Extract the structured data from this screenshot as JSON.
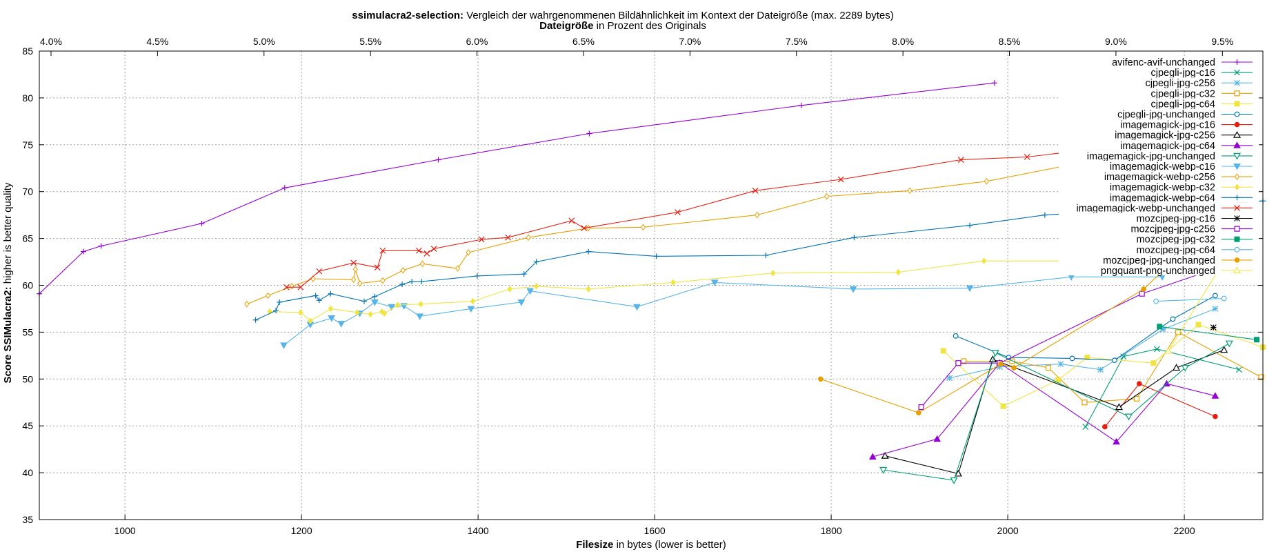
{
  "chart_data": {
    "type": "line",
    "title_bold": "ssimulacra2-selection:",
    "title_rest": " Vergleich der wahrgenommenen Bildähnlichkeit im Kontext der Dateigröße (max. 2289 bytes)",
    "x2label_bold": "Dateigröße",
    "x2label_rest": " in Prozent des Originals",
    "xlabel_bold": "Filesize",
    "xlabel_rest": " in bytes (lower is better)",
    "ylabel_bold": "Score SSIMulacra2:",
    "ylabel_rest": " higher is better quality",
    "xlim": [
      903,
      2289
    ],
    "ylim": [
      35,
      85
    ],
    "x2lim": [
      3.945,
      9.69
    ],
    "xticks": [
      1000,
      1200,
      1400,
      1600,
      1800,
      2000,
      2200
    ],
    "xtick_labels": [
      "1000",
      "1200",
      "1400",
      "1600",
      "1800",
      "2000",
      "2200"
    ],
    "yticks": [
      35,
      40,
      45,
      50,
      55,
      60,
      65,
      70,
      75,
      80,
      85
    ],
    "ytick_labels": [
      "35",
      "40",
      "45",
      "50",
      "55",
      "60",
      "65",
      "70",
      "75",
      "80",
      "85"
    ],
    "x2ticks": [
      4.0,
      4.5,
      5.0,
      5.5,
      6.0,
      6.5,
      7.0,
      7.5,
      8.0,
      8.5,
      9.0,
      9.5
    ],
    "x2tick_labels": [
      "4.0%",
      "4.5%",
      "5.0%",
      "5.5%",
      "6.0%",
      "6.5%",
      "7.0%",
      "7.5%",
      "8.0%",
      "8.5%",
      "9.0%",
      "9.5%"
    ],
    "grid": true,
    "legend_position": "top-right",
    "series": [
      {
        "name": "avifenc-avif-unchanged",
        "color": "#9400d3",
        "marker": "plus",
        "x": [
          903,
          953,
          973,
          1087,
          1181,
          1355,
          1526,
          1766,
          1985
        ],
        "y": [
          59.1,
          63.6,
          64.2,
          66.6,
          70.4,
          73.4,
          76.2,
          79.2,
          81.6
        ]
      },
      {
        "name": "cjpegli-jpg-c16",
        "color": "#009e73",
        "marker": "x",
        "x": [
          2088,
          2131,
          2169,
          2262
        ],
        "y": [
          44.9,
          52.4,
          53.2,
          51.0
        ]
      },
      {
        "name": "cjpegli-jpg-c256",
        "color": "#56b4e9",
        "marker": "star",
        "x": [
          1934,
          1991,
          2060,
          2105,
          2176,
          2235
        ],
        "y": [
          50.1,
          51.3,
          51.6,
          51.0,
          55.3,
          57.5
        ]
      },
      {
        "name": "cjpegli-jpg-c32",
        "color": "#e69f00",
        "marker": "square",
        "x": [
          1950,
          2005,
          2046,
          2087,
          2146,
          2193,
          2287
        ],
        "y": [
          51.9,
          51.9,
          51.2,
          47.5,
          47.9,
          55.0,
          50.2
        ]
      },
      {
        "name": "cjpegli-jpg-c64",
        "color": "#f0e442",
        "marker": "square-filled",
        "x": [
          1927,
          1995,
          2057,
          2090,
          2165,
          2216,
          2289
        ],
        "y": [
          53.0,
          47.1,
          49.9,
          52.3,
          51.7,
          55.8,
          53.4
        ]
      },
      {
        "name": "cjpegli-jpg-unchanged",
        "color": "#0072b2",
        "marker": "circle",
        "x": [
          1941,
          2001,
          2073,
          2121,
          2187,
          2235
        ],
        "y": [
          54.6,
          52.3,
          52.2,
          52.0,
          56.4,
          58.9
        ]
      },
      {
        "name": "imagemagick-jpg-c16",
        "color": "#e51e10",
        "marker": "circle-filled",
        "x": [
          2110,
          2149,
          2235
        ],
        "y": [
          44.9,
          49.5,
          46.0
        ]
      },
      {
        "name": "imagemagick-jpg-c256",
        "color": "#000000",
        "marker": "triangle",
        "x": [
          1861,
          1944,
          1983,
          2126,
          2191,
          2245
        ],
        "y": [
          41.8,
          39.9,
          52.1,
          47.0,
          51.2,
          53.1
        ]
      },
      {
        "name": "imagemagick-jpg-c64",
        "color": "#9400d3",
        "marker": "triangle-filled",
        "x": [
          1847,
          1920,
          1991,
          2123,
          2180,
          2235
        ],
        "y": [
          41.7,
          43.6,
          51.7,
          43.3,
          49.5,
          48.2
        ]
      },
      {
        "name": "imagemagick-jpg-unchanged",
        "color": "#009e73",
        "marker": "triangle-down",
        "x": [
          1859,
          1939,
          1986,
          2137,
          2201,
          2251
        ],
        "y": [
          40.3,
          39.2,
          52.8,
          46.0,
          51.2,
          53.8
        ]
      },
      {
        "name": "imagemagick-webp-c16",
        "color": "#56b4e9",
        "marker": "triangle-down-filled",
        "x": [
          1180,
          1210,
          1234,
          1245,
          1266,
          1283,
          1302,
          1316,
          1334,
          1392,
          1449,
          1459,
          1580,
          1668,
          1825,
          1957,
          2072,
          2175
        ],
        "y": [
          53.6,
          55.8,
          56.5,
          55.9,
          57.0,
          58.2,
          57.7,
          57.8,
          56.7,
          57.5,
          58.2,
          59.4,
          57.7,
          60.3,
          59.6,
          59.7,
          60.9,
          60.9
        ]
      },
      {
        "name": "imagemagick-webp-c256",
        "color": "#e69f00",
        "marker": "diamond",
        "x": [
          1138,
          1162,
          1189,
          1213,
          1259,
          1261,
          1266,
          1292,
          1315,
          1337,
          1377,
          1389,
          1457,
          1525,
          1587,
          1716,
          1795,
          1889,
          1976,
          2084,
          2175
        ],
        "y": [
          58.0,
          58.9,
          59.9,
          60.7,
          60.6,
          61.7,
          60.2,
          60.5,
          61.6,
          62.3,
          61.8,
          63.5,
          65.1,
          66.1,
          66.2,
          67.5,
          69.5,
          70.1,
          71.1,
          73.1,
          74.4
        ]
      },
      {
        "name": "imagemagick-webp-c32",
        "color": "#f0e442",
        "marker": "diamond-filled",
        "x": [
          1164,
          1199,
          1210,
          1233,
          1263,
          1278,
          1291,
          1294,
          1309,
          1335,
          1394,
          1436,
          1466,
          1525,
          1621,
          1734,
          1876,
          1973,
          2080,
          2172
        ],
        "y": [
          57.2,
          57.1,
          56.2,
          57.5,
          57.1,
          56.9,
          57.2,
          57.0,
          57.9,
          58.0,
          58.3,
          59.6,
          59.9,
          59.6,
          60.3,
          61.3,
          61.4,
          62.6,
          62.6,
          63.8
        ]
      },
      {
        "name": "imagemagick-webp-c64",
        "color": "#0072b2",
        "marker": "plus",
        "x": [
          1148,
          1171,
          1175,
          1216,
          1220,
          1233,
          1271,
          1283,
          1314,
          1325,
          1336,
          1399,
          1452,
          1466,
          1525,
          1602,
          1726,
          1826,
          1957,
          2042,
          2289
        ],
        "y": [
          56.3,
          57.3,
          58.2,
          58.9,
          58.4,
          59.1,
          58.3,
          58.8,
          60.1,
          60.4,
          60.4,
          61.0,
          61.2,
          62.5,
          63.6,
          63.1,
          63.2,
          65.1,
          66.4,
          67.5,
          69.0
        ]
      },
      {
        "name": "imagemagick-webp-unchanged",
        "color": "#e51e10",
        "marker": "x",
        "x": [
          1183,
          1199,
          1220,
          1259,
          1286,
          1292,
          1333,
          1342,
          1350,
          1404,
          1434,
          1506,
          1520,
          1626,
          1714,
          1811,
          1947,
          2022,
          2245
        ],
        "y": [
          59.8,
          59.8,
          61.5,
          62.4,
          61.9,
          63.7,
          63.7,
          63.4,
          63.9,
          64.9,
          65.1,
          66.9,
          66.1,
          67.8,
          70.1,
          71.3,
          73.4,
          73.7,
          76.2
        ]
      },
      {
        "name": "mozcjpeg-jpg-c16",
        "color": "#000000",
        "marker": "asterisk",
        "x": [
          2233
        ],
        "y": [
          55.5
        ]
      },
      {
        "name": "mozcjpeg-jpg-c256",
        "color": "#9400d3",
        "marker": "square",
        "x": [
          1902,
          1944,
          1991,
          2152,
          2236
        ],
        "y": [
          47.0,
          51.7,
          51.7,
          59.1,
          61.8
        ]
      },
      {
        "name": "mozcjpeg-jpg-c32",
        "color": "#009e73",
        "marker": "square-filled",
        "x": [
          2172,
          2282
        ],
        "y": [
          55.6,
          54.2
        ]
      },
      {
        "name": "mozcjpeg-jpg-c64",
        "color": "#56b4e9",
        "marker": "circle",
        "x": [
          2168,
          2245
        ],
        "y": [
          58.3,
          58.6
        ]
      },
      {
        "name": "mozcjpeg-jpg-unchanged",
        "color": "#e69f00",
        "marker": "circle-filled",
        "x": [
          1788,
          1899,
          1992,
          2007,
          2154,
          2197
        ],
        "y": [
          50.0,
          46.4,
          51.6,
          51.2,
          59.6,
          63.4
        ]
      },
      {
        "name": "pngquant-png-unchanged",
        "color": "#f0e442",
        "marker": "triangle",
        "x": [
          2182,
          2238
        ],
        "y": [
          53.0,
          61.5
        ]
      }
    ]
  }
}
